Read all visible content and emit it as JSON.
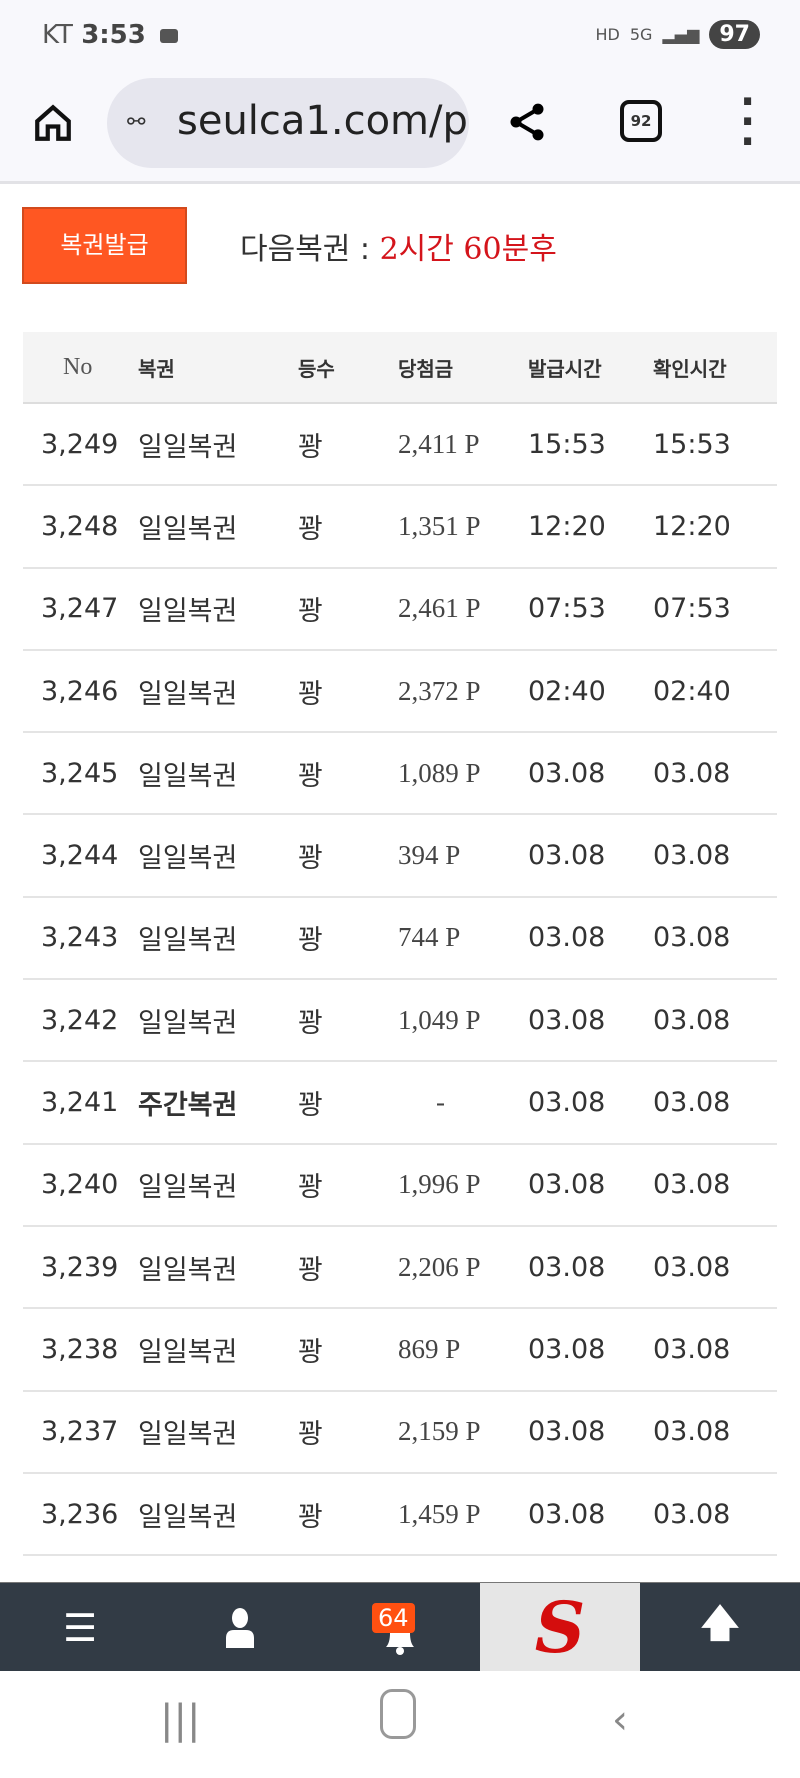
{
  "status_bar": {
    "carrier": "KT",
    "time": "3:53",
    "icons": [
      "voicemail-icon",
      "hd-icon",
      "5g-icon",
      "signal-icon"
    ],
    "battery": "97"
  },
  "browser": {
    "url": "seulca1.com/p",
    "tab_count": "92"
  },
  "issue_button": "복권발급",
  "next_label": "다음복권 : ",
  "next_value": "2시간 60분후",
  "colors": {
    "accent": "#ff5722",
    "countdown": "#d4141b",
    "nav_bg": "#323b45"
  },
  "table": {
    "headers": [
      "No",
      "복권",
      "등수",
      "당첨금",
      "발급시간",
      "확인시간"
    ],
    "rows": [
      [
        "3,249",
        "일일복권",
        "꽝",
        "2,411 P",
        "15:53",
        "15:53"
      ],
      [
        "3,248",
        "일일복권",
        "꽝",
        "1,351 P",
        "12:20",
        "12:20"
      ],
      [
        "3,247",
        "일일복권",
        "꽝",
        "2,461 P",
        "07:53",
        "07:53"
      ],
      [
        "3,246",
        "일일복권",
        "꽝",
        "2,372 P",
        "02:40",
        "02:40"
      ],
      [
        "3,245",
        "일일복권",
        "꽝",
        "1,089 P",
        "03.08",
        "03.08"
      ],
      [
        "3,244",
        "일일복권",
        "꽝",
        "394 P",
        "03.08",
        "03.08"
      ],
      [
        "3,243",
        "일일복권",
        "꽝",
        "744 P",
        "03.08",
        "03.08"
      ],
      [
        "3,242",
        "일일복권",
        "꽝",
        "1,049 P",
        "03.08",
        "03.08"
      ],
      [
        "3,241",
        "주간복권",
        "꽝",
        "-",
        "03.08",
        "03.08"
      ],
      [
        "3,240",
        "일일복권",
        "꽝",
        "1,996 P",
        "03.08",
        "03.08"
      ],
      [
        "3,239",
        "일일복권",
        "꽝",
        "2,206 P",
        "03.08",
        "03.08"
      ],
      [
        "3,238",
        "일일복권",
        "꽝",
        "869 P",
        "03.08",
        "03.08"
      ],
      [
        "3,237",
        "일일복권",
        "꽝",
        "2,159 P",
        "03.08",
        "03.08"
      ],
      [
        "3,236",
        "일일복권",
        "꽝",
        "1,459 P",
        "03.08",
        "03.08"
      ]
    ]
  },
  "bottom_nav": {
    "notification_count": "64",
    "items": [
      "menu-icon",
      "user-icon",
      "bell-icon",
      "site-logo",
      "arrow-up-icon"
    ],
    "logo_letter": "S"
  }
}
